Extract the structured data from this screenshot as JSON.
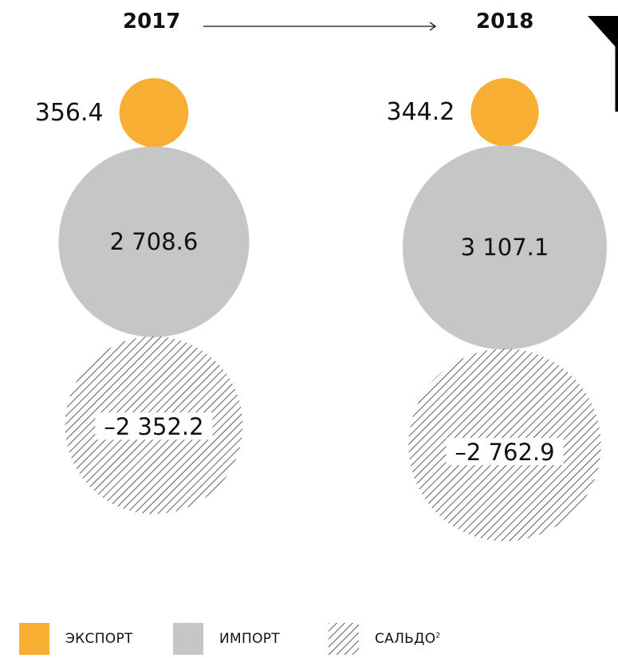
{
  "chart_data": {
    "type": "bubble",
    "unit": "",
    "years": [
      "2017",
      "2018"
    ],
    "series": [
      {
        "name": "ЭКСПОРТ",
        "values": [
          356.4,
          344.2
        ],
        "labels": [
          "356.4",
          "344.2"
        ],
        "color": "#F7AE32"
      },
      {
        "name": "ИМПОРТ",
        "values": [
          2708.6,
          3107.1
        ],
        "labels": [
          "2 708.6",
          "3 107.1"
        ],
        "color": "#C6C6C6"
      },
      {
        "name": "САЛЬДО",
        "values": [
          -2352.2,
          -2762.9
        ],
        "labels": [
          "–2 352.2",
          "–2 762.9"
        ],
        "color": "#1a1a1a",
        "pattern": "diagonal-hatch"
      }
    ]
  },
  "legend": {
    "export_label": "ЭКСПОРТ",
    "import_label": "ИМПОРТ",
    "balance_label": "САЛЬДО",
    "balance_footnote": "2"
  },
  "icons": {
    "arrow": "arrow-right-icon",
    "corner": "corner-tab-icon"
  }
}
